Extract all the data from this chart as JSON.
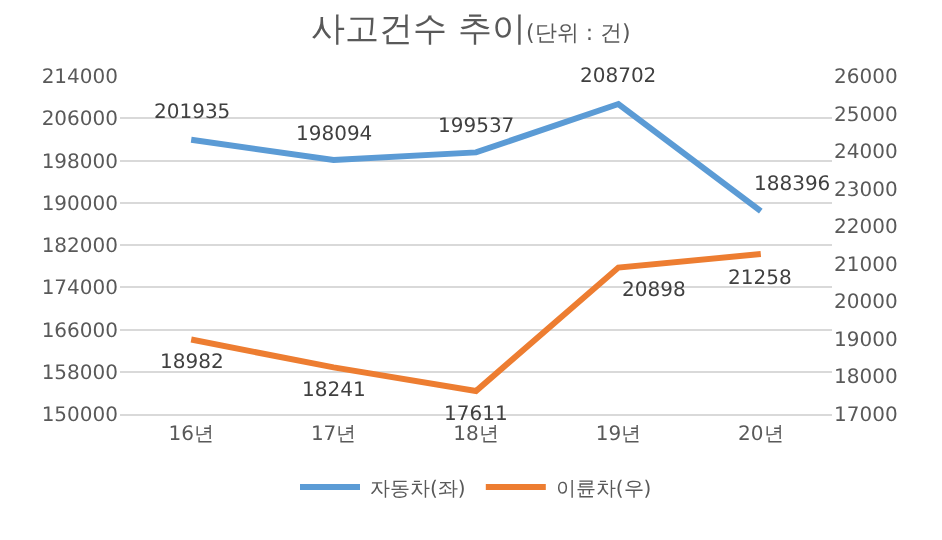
{
  "chart_data": {
    "type": "line",
    "title": "사고건수 추이",
    "subtitle": "(단위 : 건)",
    "categories": [
      "16년",
      "17년",
      "18년",
      "19년",
      "20년"
    ],
    "series": [
      {
        "name": "자동차(좌)",
        "color": "#5b9bd5",
        "values": [
          201935,
          198094,
          199537,
          208702,
          188396
        ]
      },
      {
        "name": "이륜차(우)",
        "color": "#ed7d31",
        "values": [
          18982,
          18241,
          17611,
          20898,
          21258
        ],
        "axis": "y2"
      }
    ],
    "ylim": [
      150000,
      214000
    ],
    "yticks": [
      150000,
      158000,
      166000,
      174000,
      182000,
      190000,
      198000,
      206000,
      214000
    ],
    "y2lim": [
      17000,
      26000
    ],
    "y2ticks": [
      17000,
      18000,
      19000,
      20000,
      21000,
      22000,
      23000,
      24000,
      25000,
      26000
    ],
    "grid": "y",
    "legend": "bottom",
    "data_labels": true,
    "marker": "none",
    "line_style": "solid"
  }
}
